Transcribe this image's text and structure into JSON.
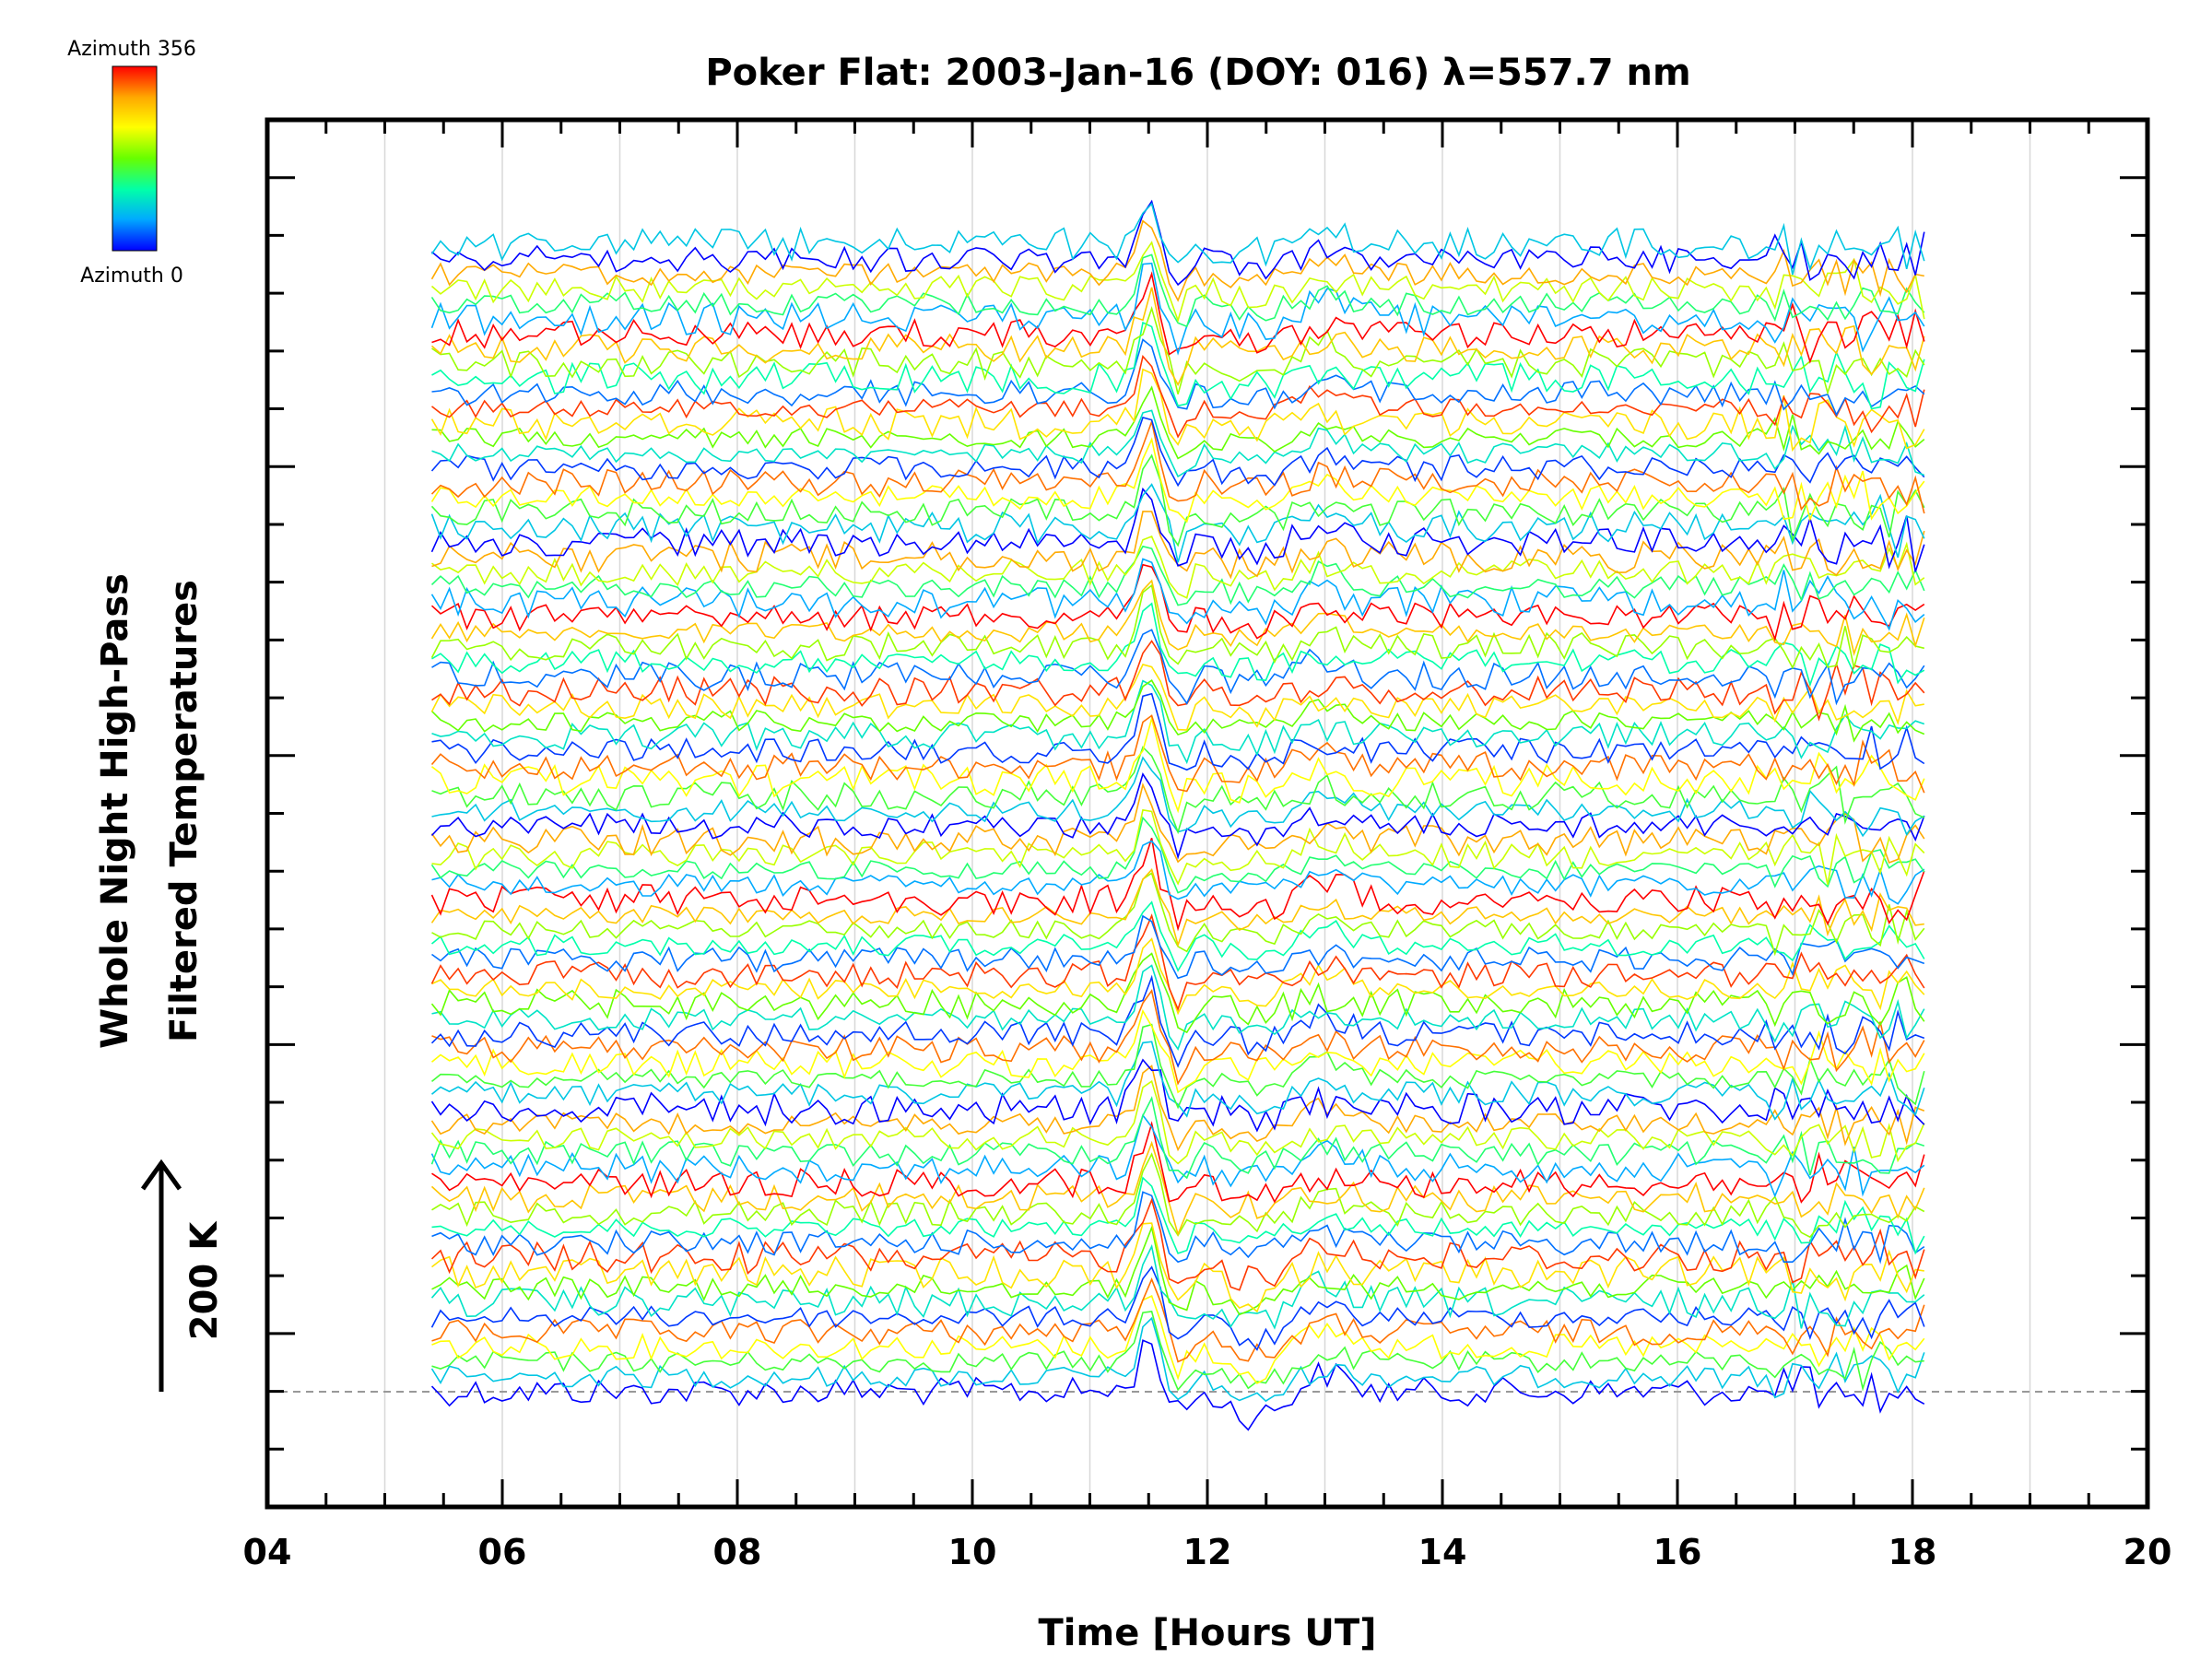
{
  "chart_data": {
    "type": "line",
    "title": "Poker Flat: 2003-Jan-16 (DOY: 016) λ=557.7 nm",
    "xlabel": "Time [Hours UT]",
    "ylabel_line1": "Whole Night High-Pass",
    "ylabel_line2": "Filtered Temperatures",
    "scale_label": "200 K",
    "xlim": [
      4,
      20
    ],
    "x_ticks": [
      "04",
      "06",
      "08",
      "10",
      "12",
      "14",
      "16",
      "18",
      "20"
    ],
    "x_tick_values": [
      4,
      6,
      8,
      10,
      12,
      14,
      16,
      18,
      20
    ],
    "x_minor_step": 0.5,
    "y_tick_count": 23,
    "grid": true,
    "baseline": "dashed",
    "colorbar": {
      "top_label": "Azimuth 356",
      "bottom_label": "Azimuth 0",
      "colors": [
        "#0000ff",
        "#00aaff",
        "#00ffaa",
        "#66ff00",
        "#ffff00",
        "#ffaa00",
        "#ff0000"
      ]
    },
    "x_range_data": [
      5.4,
      18.1
    ],
    "series_count": 78,
    "azimuth_range": [
      0,
      356
    ],
    "features": [
      {
        "x": 11.5,
        "description_value": 1
      },
      {
        "x": 13.0,
        "description_value": 0.4
      },
      {
        "x": 17.5,
        "description_value": -0.6
      }
    ]
  }
}
